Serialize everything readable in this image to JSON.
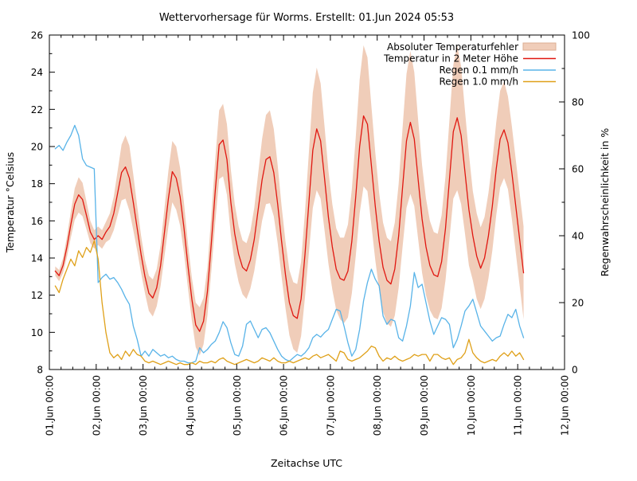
{
  "title": "Wettervorhersage für Worms. Erstellt: 01.Jun 2024 05:53",
  "axes": {
    "x": {
      "label": "Zeitachse UTC",
      "tick_labels": [
        "01.Jun 00:00",
        "02.Jun 00:00",
        "03.Jun 00:00",
        "04.Jun 00:00",
        "05.Jun 00:00",
        "06.Jun 00:00",
        "07.Jun 00:00",
        "08.Jun 00:00",
        "09.Jun 00:00",
        "10.Jun 00:00",
        "11.Jun 00:00",
        "12.Jun 00:00"
      ],
      "days_span": 11,
      "minor_tick_hours": 6
    },
    "y_left": {
      "label": "Temperatur °Celsius",
      "min": 8,
      "max": 26,
      "major_step": 2,
      "minor_step": 1,
      "ticks": [
        8,
        10,
        12,
        14,
        16,
        18,
        20,
        22,
        24,
        26
      ]
    },
    "y_right": {
      "label": "Regenwahrscheinlichkeit in %",
      "min": 0,
      "max": 100,
      "major_step": 20,
      "minor_step": 10,
      "ticks": [
        0,
        20,
        40,
        60,
        80,
        100
      ]
    }
  },
  "chart_data": {
    "type": "line",
    "title": "Wettervorhersage für Worms. Erstellt: 01.Jun 2024 05:53",
    "xlabel": "Zeitachse UTC",
    "ylabel_left": "Temperatur °Celsius",
    "ylabel_right": "Regenwahrscheinlichkeit in %",
    "xlim_days": [
      0,
      11
    ],
    "ylim_left": [
      8,
      26
    ],
    "ylim_right": [
      0,
      100
    ],
    "grid": false,
    "legend_position": "top-right-inside",
    "x_unit": "hours since 01.Jun 2024 00:00 UTC",
    "x_start_hour": 3,
    "x_step_hours": 2,
    "series": [
      {
        "name": "Absoluter Temperaturfehler",
        "type": "band",
        "axis": "left",
        "color": "#f0cdb9",
        "border": "#dcae92",
        "halfwidth": [
          0.25,
          0.3,
          0.4,
          0.55,
          0.7,
          0.85,
          0.95,
          0.9,
          0.75,
          0.6,
          0.5,
          0.5,
          0.5,
          0.55,
          0.7,
          0.9,
          1.2,
          1.5,
          1.7,
          1.75,
          1.5,
          1.2,
          1.0,
          0.9,
          0.95,
          1.0,
          1.0,
          1.1,
          1.3,
          1.5,
          1.65,
          1.7,
          1.55,
          1.35,
          1.2,
          1.15,
          1.2,
          1.3,
          1.25,
          1.3,
          1.5,
          1.7,
          1.85,
          1.95,
          1.9,
          1.75,
          1.6,
          1.5,
          1.45,
          1.5,
          1.55,
          1.7,
          1.95,
          2.2,
          2.4,
          2.5,
          2.35,
          2.1,
          1.9,
          1.8,
          1.75,
          1.8,
          1.85,
          2.0,
          2.3,
          2.7,
          3.1,
          3.3,
          3.1,
          2.8,
          2.5,
          2.3,
          2.2,
          2.2,
          2.3,
          2.5,
          2.8,
          3.2,
          3.6,
          3.8,
          3.6,
          3.2,
          2.9,
          2.6,
          2.4,
          2.3,
          2.3,
          2.5,
          2.8,
          3.2,
          3.6,
          3.85,
          3.6,
          3.2,
          2.9,
          2.6,
          2.4,
          2.3,
          2.3,
          2.5,
          2.8,
          3.2,
          3.6,
          3.9,
          3.7,
          3.3,
          3.0,
          2.4,
          2.3,
          2.2,
          2.2,
          2.3,
          2.4,
          2.5,
          2.6,
          2.6,
          2.5,
          2.5,
          2.5,
          2.5,
          2.5
        ]
      },
      {
        "name": "Temperatur in 2 Meter Höhe",
        "type": "line",
        "axis": "left",
        "color": "#e01710",
        "values": [
          13.3,
          13.05,
          13.6,
          14.6,
          15.8,
          16.9,
          17.4,
          17.15,
          16.3,
          15.4,
          15.0,
          15.2,
          15.0,
          15.4,
          15.7,
          16.4,
          17.5,
          18.6,
          18.9,
          18.3,
          17.0,
          15.6,
          14.2,
          13.0,
          12.1,
          11.85,
          12.4,
          13.6,
          15.4,
          17.2,
          18.65,
          18.3,
          17.3,
          15.6,
          13.6,
          11.8,
          10.4,
          10.05,
          10.6,
          12.2,
          14.8,
          17.6,
          20.1,
          20.35,
          19.3,
          17.0,
          15.3,
          14.2,
          13.5,
          13.3,
          13.9,
          15.0,
          16.6,
          18.2,
          19.3,
          19.45,
          18.6,
          16.9,
          14.9,
          13.1,
          11.6,
          10.9,
          10.75,
          11.8,
          14.2,
          17.0,
          19.8,
          20.95,
          20.3,
          18.3,
          16.2,
          14.6,
          13.4,
          12.9,
          12.8,
          13.3,
          14.9,
          17.3,
          20.0,
          21.65,
          21.2,
          19.0,
          16.8,
          14.9,
          13.5,
          12.8,
          12.6,
          13.4,
          15.2,
          17.8,
          20.3,
          21.3,
          20.4,
          18.2,
          16.1,
          14.6,
          13.6,
          13.1,
          13.0,
          13.8,
          15.6,
          18.2,
          20.8,
          21.55,
          20.6,
          18.6,
          16.6,
          15.2,
          14.1,
          13.45,
          14.0,
          15.2,
          16.8,
          18.8,
          20.4,
          20.9,
          20.2,
          18.6,
          16.8,
          15.0,
          13.2
        ]
      },
      {
        "name": "Regen 0.1 mm/h",
        "type": "line",
        "axis": "right",
        "color": "#58b3e8",
        "values": [
          66,
          67,
          65.5,
          68,
          70,
          73,
          70,
          63,
          61,
          60.5,
          60,
          26,
          27.5,
          28.5,
          27,
          27.5,
          26,
          24,
          21.5,
          19.5,
          13,
          9,
          4,
          5.5,
          4,
          6,
          5,
          4,
          4.5,
          3.5,
          4,
          3,
          2.5,
          2.5,
          2,
          2,
          2.5,
          6.5,
          5,
          6,
          7.5,
          8.5,
          11,
          14.3,
          12.5,
          8,
          4.5,
          4,
          7,
          13.5,
          14.5,
          12,
          9.5,
          12,
          12.5,
          11,
          8.5,
          6,
          4,
          3,
          2.5,
          3.5,
          4.5,
          4,
          5,
          6.5,
          9.5,
          10.5,
          9.7,
          11,
          12,
          15,
          18,
          17.5,
          13,
          8,
          4,
          6,
          12,
          20.5,
          26,
          30,
          27,
          25,
          16,
          13.5,
          15,
          14.5,
          9.5,
          8.5,
          13,
          19,
          29,
          24.5,
          25.5,
          20,
          14.5,
          10.5,
          13,
          15.5,
          15,
          13.5,
          6.5,
          9,
          13,
          17.5,
          19,
          21,
          17,
          13,
          11.5,
          10,
          8.5,
          9.5,
          10,
          13.5,
          16.5,
          15.5,
          18,
          13,
          9.5
        ]
      },
      {
        "name": "Regen 1.0 mm/h",
        "type": "line",
        "axis": "right",
        "color": "#dfa018",
        "values": [
          25,
          23,
          27,
          30,
          33,
          31,
          35.5,
          33.5,
          36.5,
          35,
          38.5,
          33,
          20,
          11,
          5,
          3.5,
          4.5,
          3,
          5.5,
          4,
          6,
          4.5,
          4,
          2.5,
          2,
          2.5,
          2,
          1.5,
          2,
          2.5,
          2,
          1.5,
          2,
          1.5,
          1.5,
          2,
          1.5,
          2.5,
          2,
          2,
          2.5,
          2,
          3,
          3.5,
          2.5,
          2,
          1.5,
          2,
          2.5,
          3,
          2.5,
          2,
          2.5,
          3.5,
          3,
          2.5,
          3.5,
          2.5,
          2,
          2,
          2.5,
          2,
          2.5,
          3,
          3.5,
          3,
          4,
          4.5,
          3.5,
          4,
          4.5,
          3.5,
          2.5,
          5.5,
          5,
          3,
          2.5,
          3,
          3.5,
          4.5,
          5.5,
          7,
          6.5,
          4,
          2.5,
          3.5,
          3,
          4,
          3,
          2.5,
          3,
          3.5,
          4.5,
          4,
          4.5,
          4.5,
          2.5,
          4.5,
          4.5,
          3.5,
          3,
          3.5,
          1.5,
          3,
          3.5,
          5,
          9,
          5,
          3.5,
          2.5,
          2,
          2.5,
          3,
          2.5,
          4,
          5,
          4,
          5.5,
          4,
          5,
          3
        ]
      }
    ]
  }
}
